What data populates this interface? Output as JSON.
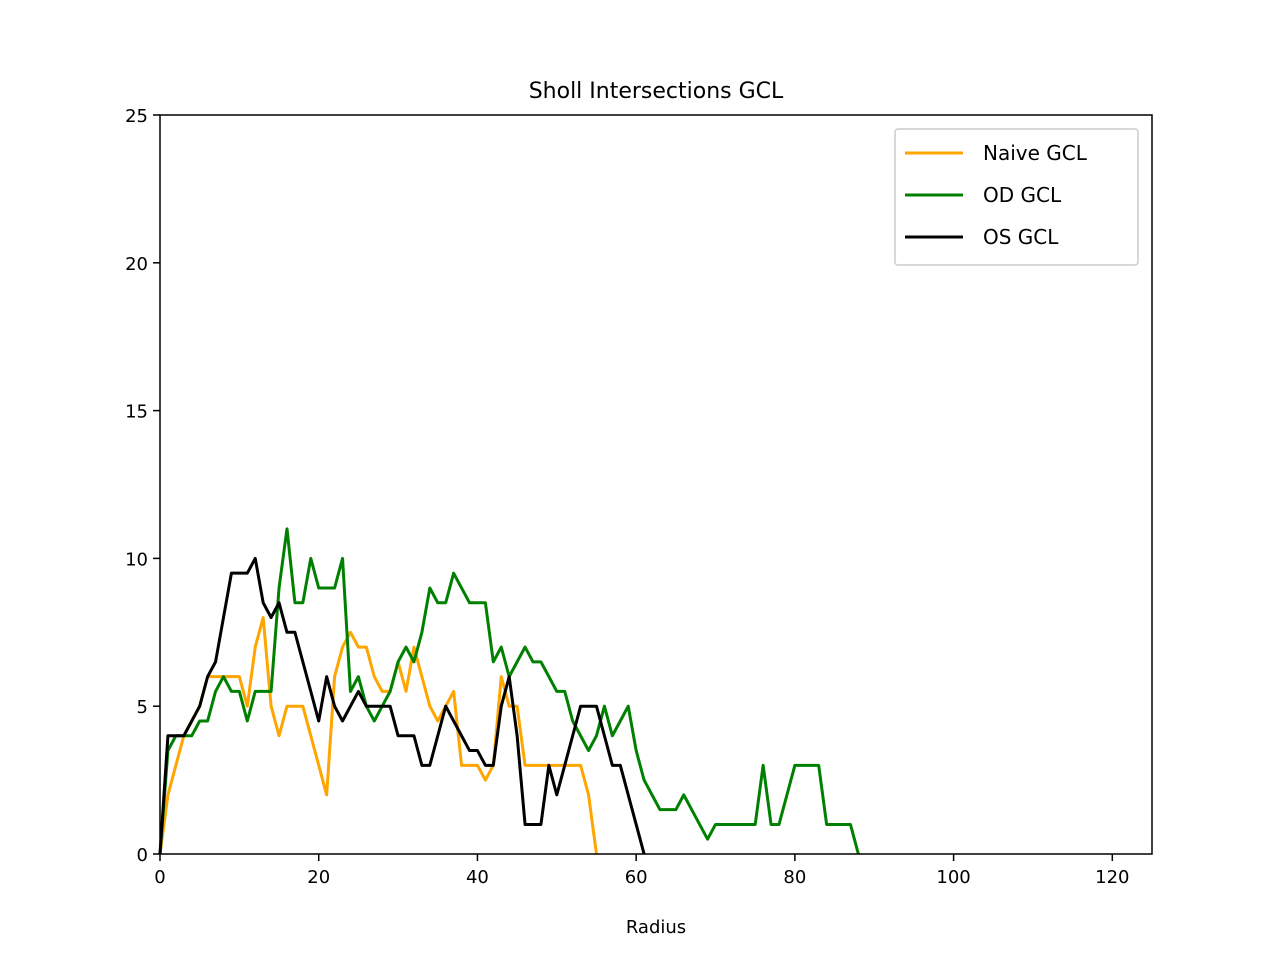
{
  "chart_data": {
    "type": "line",
    "title": "Sholl Intersections GCL",
    "xlabel": "Radius",
    "ylabel": "",
    "xlim": [
      0,
      125
    ],
    "ylim": [
      0,
      25
    ],
    "xticks": [
      0,
      20,
      40,
      60,
      80,
      100,
      120
    ],
    "yticks": [
      0,
      5,
      10,
      15,
      20,
      25
    ],
    "grid": false,
    "legend_position": "top-right",
    "series": [
      {
        "name": "Naive GCL",
        "color": "#ffa500",
        "x": [
          0,
          1,
          2,
          3,
          4,
          5,
          6,
          7,
          8,
          9,
          10,
          11,
          12,
          13,
          14,
          15,
          16,
          17,
          18,
          19,
          20,
          21,
          22,
          23,
          24,
          25,
          26,
          27,
          28,
          29,
          30,
          31,
          32,
          33,
          34,
          35,
          36,
          37,
          38,
          39,
          40,
          41,
          42,
          43,
          44,
          45,
          46,
          47,
          48,
          49,
          50,
          51,
          52,
          53,
          54,
          55
        ],
        "y": [
          0,
          2,
          3,
          4,
          4.5,
          5,
          6,
          6,
          6,
          6,
          6,
          5,
          7,
          8,
          5,
          4,
          5,
          5,
          5,
          4,
          3,
          2,
          6,
          7,
          7.5,
          7,
          7,
          6,
          5.5,
          5.5,
          6.5,
          5.5,
          7,
          6,
          5,
          4.5,
          5,
          5.5,
          3,
          3,
          3,
          2.5,
          3,
          6,
          5,
          5,
          3,
          3,
          3,
          3,
          3,
          3,
          3,
          3,
          2,
          0
        ]
      },
      {
        "name": "OD GCL",
        "color": "#008000",
        "x": [
          0,
          1,
          2,
          3,
          4,
          5,
          6,
          7,
          8,
          9,
          10,
          11,
          12,
          13,
          14,
          15,
          16,
          17,
          18,
          19,
          20,
          21,
          22,
          23,
          24,
          25,
          26,
          27,
          28,
          29,
          30,
          31,
          32,
          33,
          34,
          35,
          36,
          37,
          38,
          39,
          40,
          41,
          42,
          43,
          44,
          45,
          46,
          47,
          48,
          49,
          50,
          51,
          52,
          53,
          54,
          55,
          56,
          57,
          58,
          59,
          60,
          61,
          62,
          63,
          64,
          65,
          66,
          67,
          68,
          69,
          70,
          71,
          72,
          73,
          74,
          75,
          76,
          77,
          78,
          79,
          80,
          81,
          82,
          83,
          84,
          85,
          86,
          87,
          88
        ],
        "y": [
          0,
          3.5,
          4,
          4,
          4,
          4.5,
          4.5,
          5.5,
          6,
          5.5,
          5.5,
          4.5,
          5.5,
          5.5,
          5.5,
          9,
          11,
          8.5,
          8.5,
          10,
          9,
          9,
          9,
          10,
          5.5,
          6,
          5,
          4.5,
          5,
          5.5,
          6.5,
          7,
          6.5,
          7.5,
          9,
          8.5,
          8.5,
          9.5,
          9,
          8.5,
          8.5,
          8.5,
          6.5,
          7,
          6,
          6.5,
          7,
          6.5,
          6.5,
          6,
          5.5,
          5.5,
          4.5,
          4,
          3.5,
          4,
          5,
          4,
          4.5,
          5,
          3.5,
          2.5,
          2,
          1.5,
          1.5,
          1.5,
          2,
          1.5,
          1,
          0.5,
          1,
          1,
          1,
          1,
          1,
          1,
          3,
          1,
          1,
          2,
          3,
          3,
          3,
          3,
          1,
          1,
          1,
          1,
          0
        ]
      },
      {
        "name": "OS GCL",
        "color": "#000000",
        "x": [
          0,
          1,
          2,
          3,
          4,
          5,
          6,
          7,
          8,
          9,
          10,
          11,
          12,
          13,
          14,
          15,
          16,
          17,
          18,
          19,
          20,
          21,
          22,
          23,
          24,
          25,
          26,
          27,
          28,
          29,
          30,
          31,
          32,
          33,
          34,
          35,
          36,
          37,
          38,
          39,
          40,
          41,
          42,
          43,
          44,
          45,
          46,
          47,
          48,
          49,
          50,
          51,
          52,
          53,
          54,
          55,
          56,
          57,
          58,
          59,
          60,
          61
        ],
        "y": [
          0,
          4,
          4,
          4,
          4.5,
          5,
          6,
          6.5,
          8,
          9.5,
          9.5,
          9.5,
          10,
          8.5,
          8,
          8.5,
          7.5,
          7.5,
          6.5,
          5.5,
          4.5,
          6,
          5,
          4.5,
          5,
          5.5,
          5,
          5,
          5,
          5,
          4,
          4,
          4,
          3,
          3,
          4,
          5,
          4.5,
          4,
          3.5,
          3.5,
          3,
          3,
          5,
          6,
          4,
          1,
          1,
          1,
          3,
          2,
          3,
          4,
          5,
          5,
          5,
          4,
          3,
          3,
          2,
          1,
          0
        ]
      }
    ]
  }
}
